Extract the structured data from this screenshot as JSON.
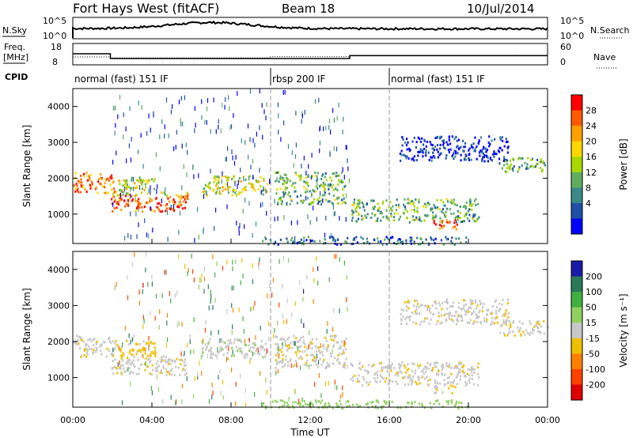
{
  "header": {
    "station": "Fort Hays West (fitACF)",
    "beam": "Beam 18",
    "date": "10/Jul/2014"
  },
  "labels": {
    "nsky": "N.Sky",
    "nsearch": "N.Search",
    "freq_l1": "Freq.",
    "freq_l2": "[MHz]",
    "nave": "Nave",
    "cpid": "CPID",
    "yaxis": "Slant Range [km]",
    "xaxis": "Time UT"
  },
  "noise_axis": {
    "left_ticks": [
      "10^5",
      "10^0"
    ],
    "right_ticks": [
      "10^5",
      "10^0"
    ]
  },
  "freq_axis": {
    "left_ticks": [
      "18",
      "8"
    ],
    "right_ticks": [
      "60",
      "0"
    ]
  },
  "cpid_segments": [
    {
      "label": "normal (fast) 151 IF",
      "start": 0,
      "end": 10
    },
    {
      "label": "rbsp 200 IF",
      "start": 10,
      "end": 16
    },
    {
      "label": "normal (fast) 151 IF",
      "start": 16,
      "end": 24
    }
  ],
  "power_colorbar": {
    "title": "Power [dB]",
    "ticks": [
      "28",
      "24",
      "20",
      "16",
      "12",
      "8",
      "4"
    ],
    "colors": [
      "#ff0000",
      "#ff5a00",
      "#ffa000",
      "#ffd800",
      "#a8d800",
      "#5fae5f",
      "#3a8a8a",
      "#2050a8",
      "#0000ff"
    ]
  },
  "velocity_colorbar": {
    "title": "Velocity [m s⁻¹]",
    "ticks": [
      "200",
      "100",
      "50",
      "15",
      "-15",
      "-50",
      "-100",
      "-200"
    ],
    "colors": [
      "#1a1aa8",
      "#2a7a5a",
      "#40b040",
      "#90d060",
      "#c8c8c8",
      "#f0c000",
      "#ff8000",
      "#ff4000",
      "#e00000"
    ]
  },
  "chart_data": {
    "type": "heatmap",
    "x_ticks": [
      "00:00",
      "04:00",
      "08:00",
      "12:00",
      "16:00",
      "20:00",
      "00:00"
    ],
    "y_ticks": [
      "1000",
      "2000",
      "3000",
      "4000"
    ],
    "xlim": [
      0,
      24
    ],
    "ylim": [
      180,
      4500
    ],
    "frequency_steps": [
      {
        "start": 0,
        "end": 1.9,
        "value": 13
      },
      {
        "start": 1.9,
        "end": 14,
        "value": 10.5
      },
      {
        "start": 14,
        "end": 24,
        "value": 12
      }
    ],
    "nave_steps": [
      {
        "start": 0,
        "end": 1.9,
        "value": 20
      },
      {
        "start": 1.9,
        "end": 10,
        "value": 17
      },
      {
        "start": 10,
        "end": 14,
        "value": 21
      },
      {
        "start": 14,
        "end": 24,
        "value": 25
      }
    ],
    "echo_regions": [
      {
        "t0": 0,
        "t1": 2.1,
        "r0": 1600,
        "r1": 2200,
        "power": 24,
        "velocity": -15
      },
      {
        "t0": 1.9,
        "t1": 5.8,
        "r0": 1100,
        "r1": 1550,
        "power": 26,
        "velocity": -15
      },
      {
        "t0": 2.0,
        "t1": 4.2,
        "r0": 1550,
        "r1": 2050,
        "power": 18,
        "velocity": -40
      },
      {
        "t0": 4.4,
        "t1": 5.8,
        "r0": 1450,
        "r1": 1650,
        "power": 20,
        "velocity": -15
      },
      {
        "t0": 6.5,
        "t1": 9.8,
        "r0": 1550,
        "r1": 2100,
        "power": 18,
        "velocity": 15
      },
      {
        "t0": 10.2,
        "t1": 13.8,
        "r0": 1300,
        "r1": 2200,
        "power": 14,
        "velocity": -15
      },
      {
        "t0": 14.0,
        "t1": 20.5,
        "r0": 800,
        "r1": 1450,
        "power": 14,
        "velocity": -15
      },
      {
        "t0": 18.2,
        "t1": 19.4,
        "r0": 600,
        "r1": 900,
        "power": 26,
        "velocity": -15
      },
      {
        "t0": 21.5,
        "t1": 24,
        "r0": 2200,
        "r1": 2600,
        "power": 14,
        "velocity": -15
      },
      {
        "t0": 16.5,
        "t1": 22.0,
        "r0": 2500,
        "r1": 3200,
        "power": 6,
        "velocity": -15
      },
      {
        "t0": 9.5,
        "t1": 20.0,
        "r0": 180,
        "r1": 400,
        "power": 10,
        "velocity": 50
      }
    ]
  }
}
